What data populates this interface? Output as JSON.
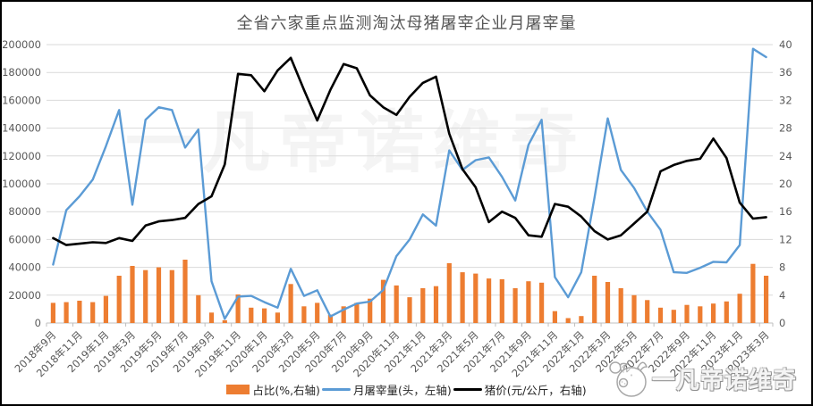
{
  "watermarks": {
    "center": "一凡帝诺维奇",
    "corner": "一凡帝诺维奇"
  },
  "chart_data": {
    "type": "bar",
    "title": "全省六家重点监测淘汰母猪屠宰企业月屠宰量",
    "grid": true,
    "legend_position": "bottom",
    "left_axis": {
      "min": 0,
      "max": 200000,
      "step": 20000
    },
    "right_axis": {
      "min": 0,
      "max": 40,
      "step": 4
    },
    "label_every": 2,
    "categories": [
      "2018年9月",
      "2018年10月",
      "2018年11月",
      "2018年12月",
      "2019年1月",
      "2019年2月",
      "2019年3月",
      "2019年4月",
      "2019年5月",
      "2019年6月",
      "2019年7月",
      "2019年8月",
      "2019年9月",
      "2019年10月",
      "2019年11月",
      "2019年12月",
      "2020年1月",
      "2020年2月",
      "2020年3月",
      "2020年4月",
      "2020年5月",
      "2020年6月",
      "2020年7月",
      "2020年8月",
      "2020年9月",
      "2020年10月",
      "2020年11月",
      "2020年12月",
      "2021年1月",
      "2021年2月",
      "2021年3月",
      "2021年4月",
      "2021年5月",
      "2021年6月",
      "2021年7月",
      "2021年8月",
      "2021年9月",
      "2021年10月",
      "2021年11月",
      "2021年12月",
      "2022年1月",
      "2022年2月",
      "2022年3月",
      "2022年4月",
      "2022年5月",
      "2022年6月",
      "2022年7月",
      "2022年8月",
      "2022年9月",
      "2022年10月",
      "2022年11月",
      "2022年12月",
      "2023年1月",
      "2023年2月",
      "2023年3月"
    ],
    "series": [
      {
        "name": "占比(%,右轴)",
        "type": "bar",
        "axis": "right",
        "color": "#ED7D31",
        "values": [
          2.9,
          3.0,
          3.2,
          3.0,
          3.9,
          6.8,
          8.2,
          7.6,
          8.0,
          7.6,
          9.1,
          4.0,
          1.5,
          0.4,
          4.1,
          2.2,
          2.1,
          1.5,
          5.6,
          2.4,
          2.9,
          1.2,
          2.4,
          2.9,
          3.5,
          6.2,
          5.4,
          3.7,
          5.0,
          5.3,
          8.6,
          7.3,
          7.1,
          6.4,
          6.3,
          5.0,
          6.0,
          5.8,
          1.7,
          0.7,
          1.0,
          6.8,
          5.9,
          5.0,
          4.0,
          3.3,
          2.2,
          1.9,
          2.6,
          2.4,
          2.8,
          3.1,
          4.2,
          8.5,
          6.8
        ]
      },
      {
        "name": "月屠宰量(头，左轴)",
        "type": "line",
        "axis": "left",
        "color": "#5B9BD5",
        "values": [
          42000,
          81000,
          91000,
          103000,
          127000,
          153000,
          85000,
          146000,
          155000,
          153000,
          126000,
          139000,
          30000,
          3000,
          19000,
          19500,
          15000,
          11000,
          39000,
          19500,
          23500,
          4700,
          9600,
          14000,
          15400,
          23700,
          48000,
          60000,
          78000,
          70000,
          124000,
          110000,
          117000,
          119000,
          105000,
          88000,
          128000,
          146000,
          33000,
          18500,
          36500,
          90000,
          147000,
          110000,
          97000,
          80000,
          67000,
          36500,
          36000,
          39700,
          44000,
          43600,
          56000,
          197000,
          191000
        ]
      },
      {
        "name": "猪价(元/公斤，右轴)",
        "type": "line",
        "axis": "right",
        "color": "#000000",
        "values": [
          12.2,
          11.2,
          11.4,
          11.6,
          11.5,
          12.2,
          11.8,
          14.0,
          14.6,
          14.8,
          15.1,
          17.1,
          18.2,
          22.8,
          35.8,
          35.6,
          33.3,
          36.3,
          38.1,
          33.5,
          29.1,
          33.5,
          37.2,
          36.6,
          32.7,
          31.0,
          29.9,
          32.5,
          34.5,
          35.4,
          27.2,
          22.1,
          19.5,
          14.5,
          16.0,
          15.1,
          12.6,
          12.4,
          17.1,
          16.7,
          15.3,
          13.2,
          12.0,
          12.6,
          14.3,
          16.0,
          21.8,
          22.7,
          23.3,
          23.6,
          26.5,
          23.7,
          17.3,
          15.0,
          15.2
        ]
      }
    ]
  }
}
